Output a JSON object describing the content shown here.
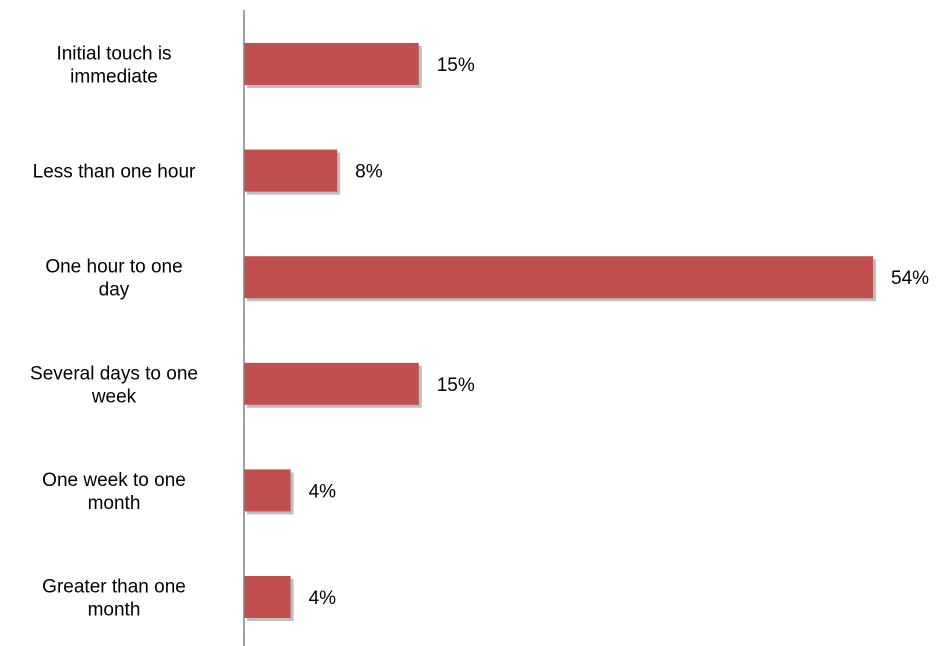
{
  "chart_data": {
    "type": "bar",
    "orientation": "horizontal",
    "categories": [
      [
        "Initial touch is",
        "immediate"
      ],
      [
        "Less than one hour"
      ],
      [
        "One hour to one",
        "day"
      ],
      [
        "Several days to one",
        "week"
      ],
      [
        "One week to one",
        "month"
      ],
      [
        "Greater than one",
        "month"
      ]
    ],
    "values": [
      15,
      8,
      54,
      15,
      4,
      4
    ],
    "value_labels": [
      "15%",
      "8%",
      "54%",
      "15%",
      "4%",
      "4%"
    ],
    "unit": "%",
    "xlim": [
      0,
      54
    ],
    "grid": false,
    "legend": "none",
    "colors": {
      "bar": "#C0504D",
      "bar_shadow": "#BFBFBF",
      "axis": "#808080"
    }
  }
}
